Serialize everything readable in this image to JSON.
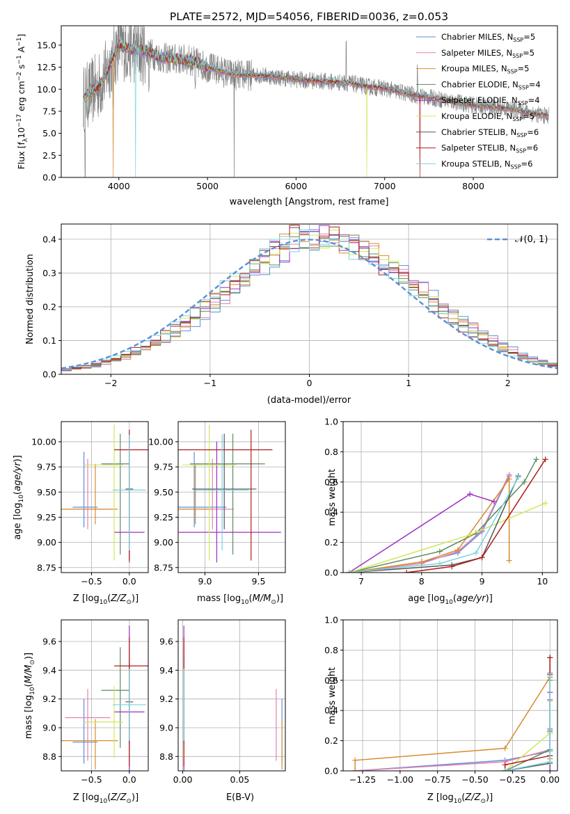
{
  "figure": {
    "title": "PLATE=2572, MJD=54056, FIBERID=0036, z=0.053"
  },
  "colors": {
    "chabrier_miles": "#5b8fd6",
    "salpeter_miles": "#e87fb0",
    "kroupa_miles": "#d88a2c",
    "chabrier_elodie": "#5d8a60",
    "salpeter_elodie": "#9b30c0",
    "kroupa_elodie": "#cfe85a",
    "chabrier_stelib": "#555555",
    "salpeter_stelib": "#b01c1c",
    "kroupa_stelib": "#78d3e0",
    "data": "#808080",
    "gaussian": "#5b8fd6"
  },
  "chart_data": [
    {
      "id": "spectrum",
      "type": "line",
      "title": "PLATE=2572, MJD=54056, FIBERID=0036, z=0.053",
      "xlabel": "wavelength [Angstrom, rest frame]",
      "ylabel_main": "Flux [f",
      "ylabel_sub": "λ",
      "ylabel_mid": "10",
      "ylabel_exp1": "−17",
      "ylabel_tail1": " erg cm",
      "ylabel_exp2": "−2",
      "ylabel_tail2": " s",
      "ylabel_exp3": "−1",
      "ylabel_tail3": " A",
      "ylabel_exp4": "−1",
      "ylabel_end": "]",
      "xlim": [
        3350,
        8950
      ],
      "ylim": [
        0,
        17.2
      ],
      "xticks": [
        "4000",
        "5000",
        "6000",
        "7000",
        "8000"
      ],
      "yticks": [
        "0.0",
        "2.5",
        "5.0",
        "7.5",
        "10.0",
        "12.5",
        "15.0"
      ],
      "continuum_x": [
        3600,
        3700,
        3800,
        3900,
        4000,
        4100,
        4300,
        4500,
        4800,
        5000,
        5300,
        5600,
        6000,
        6300,
        6600,
        6800,
        7000,
        7300,
        7600,
        8000,
        8400,
        8800
      ],
      "continuum_y": [
        8.9,
        9.8,
        10.6,
        12.8,
        15.0,
        14.6,
        14.3,
        13.5,
        13.3,
        12.5,
        11.6,
        11.6,
        11.1,
        10.9,
        10.7,
        10.3,
        10.1,
        9.4,
        8.9,
        8.2,
        7.8,
        7.0
      ],
      "legend": [
        {
          "name": "Chabrier MILES",
          "n": "5"
        },
        {
          "name": "Salpeter MILES",
          "n": "5"
        },
        {
          "name": "Kroupa MILES",
          "n": "5"
        },
        {
          "name": "Chabrier ELODIE",
          "n": "4"
        },
        {
          "name": "Salpeter ELODIE",
          "n": "4"
        },
        {
          "name": "Kroupa ELODIE",
          "n": "5"
        },
        {
          "name": "Chabrier STELIB",
          "n": "6"
        },
        {
          "name": "Salpeter STELIB",
          "n": "6"
        },
        {
          "name": "Kroupa STELIB",
          "n": "6"
        }
      ],
      "legend_prefix": "N",
      "legend_sub": "SSP",
      "legend_loc": "upper right"
    },
    {
      "id": "residuals",
      "type": "histogram",
      "xlabel": "(data-model)/error",
      "ylabel": "Normed distribution",
      "xlim": [
        -2.5,
        2.5
      ],
      "ylim": [
        0,
        0.445
      ],
      "xticks": [
        "−2",
        "−1",
        "0",
        "1",
        "2"
      ],
      "yticks": [
        "0.0",
        "0.1",
        "0.2",
        "0.3",
        "0.4"
      ],
      "legend_label": "𝒩(0, 1)",
      "legend_loc": "upper right",
      "bin_width": 0.1,
      "bin_start": -2.5
    },
    {
      "id": "age_vs_Z",
      "type": "errorbar",
      "xlabel": "Z [log",
      "xlabel_sub": "10",
      "xlabel_rest": "(Z/Z",
      "xlabel_sun": "⊙",
      "xlabel_end": ")]",
      "ylabel": "age  [log10(age/yr)]",
      "xlim": [
        -0.9,
        0.25
      ],
      "ylim": [
        8.7,
        10.2
      ],
      "xticks": [
        "−0.5",
        "0.0"
      ],
      "yticks": [
        "8.75",
        "9.00",
        "9.25",
        "9.50",
        "9.75",
        "10.00"
      ]
    },
    {
      "id": "age_vs_mass",
      "type": "errorbar",
      "xlabel": "mass [log10(M/M⊙)]",
      "xlim": [
        8.75,
        9.75
      ],
      "ylim": [
        8.7,
        10.2
      ],
      "xticks": [
        "9.0",
        "9.5"
      ],
      "yticks": [
        "8.75",
        "9.00",
        "9.25",
        "9.50",
        "9.75",
        "10.00"
      ]
    },
    {
      "id": "weight_vs_age",
      "type": "line",
      "xlabel": "age  [log10(age/yr)]",
      "ylabel": "mass weight",
      "xlim": [
        6.7,
        10.25
      ],
      "ylim": [
        0,
        1.0
      ],
      "xticks": [
        "7",
        "8",
        "9",
        "10"
      ],
      "yticks": [
        "0.0",
        "0.2",
        "0.4",
        "0.6",
        "0.8",
        "1.0"
      ]
    },
    {
      "id": "mass_vs_Z",
      "type": "errorbar",
      "xlabel": "Z [log10(Z/Z⊙)]",
      "ylabel": "mass [log10(M/M⊙)]",
      "xlim": [
        -0.9,
        0.25
      ],
      "ylim": [
        8.7,
        9.75
      ],
      "xticks": [
        "−0.5",
        "0.0"
      ],
      "yticks": [
        "8.8",
        "9.0",
        "9.2",
        "9.4",
        "9.6"
      ]
    },
    {
      "id": "mass_vs_ebv",
      "type": "errorbar",
      "xlabel": "E(B-V)",
      "xlim": [
        -0.004,
        0.09
      ],
      "ylim": [
        8.7,
        9.75
      ],
      "xticks": [
        "0.00",
        "0.05"
      ],
      "yticks": [
        "8.8",
        "9.0",
        "9.2",
        "9.4",
        "9.6"
      ]
    },
    {
      "id": "weight_vs_Z",
      "type": "line",
      "xlabel": "Z [log10(Z/Z⊙)]",
      "ylabel": "mass weight",
      "xlim": [
        -1.38,
        0.05
      ],
      "ylim": [
        0,
        1.0
      ],
      "xticks": [
        "−1.25",
        "−1.00",
        "−0.75",
        "−0.50",
        "−0.25",
        "0.00"
      ],
      "yticks": [
        "0.0",
        "0.2",
        "0.4",
        "0.6",
        "0.8",
        "1.0"
      ]
    }
  ],
  "models": [
    {
      "key": "chabrier_miles",
      "Z": -0.6,
      "Zerr": [
        0.15,
        0.18
      ],
      "age": 9.35,
      "ageErr": [
        0.2,
        0.55
      ],
      "mass": 8.9,
      "massErr": [
        0.15,
        0.3
      ],
      "ebv": 0.087,
      "ages": [
        6.8,
        8.0,
        8.6,
        9.0,
        9.45
      ],
      "w": [
        0.0,
        0.07,
        0.13,
        0.27,
        0.64
      ],
      "Zs": [
        -1.3,
        -0.3,
        0.0,
        0.0,
        0.0
      ]
    },
    {
      "key": "salpeter_miles",
      "Z": -0.55,
      "Zerr": [
        0.3,
        0.3
      ],
      "age": 9.33,
      "ageErr": [
        0.2,
        0.5
      ],
      "mass": 9.07,
      "massErr": [
        0.3,
        0.2
      ],
      "ebv": 0.082,
      "ages": [
        6.8,
        8.0,
        8.6,
        9.0,
        9.45
      ],
      "w": [
        0.0,
        0.06,
        0.14,
        0.28,
        0.65
      ],
      "Zs": [
        -1.3,
        -0.3,
        0.0,
        0.0,
        0.0
      ]
    },
    {
      "key": "kroupa_miles",
      "Z": -0.45,
      "Zerr": [
        0.45,
        0.3
      ],
      "age": 9.33,
      "ageErr": [
        0.15,
        0.45
      ],
      "mass": 8.91,
      "massErr": [
        0.2,
        0.15
      ],
      "ebv": 0.087,
      "ages": [
        6.8,
        8.0,
        8.6,
        9.45,
        9.45
      ],
      "w": [
        0.0,
        0.07,
        0.15,
        0.62,
        0.08
      ],
      "Zs": [
        -1.3,
        -1.3,
        -0.3,
        0.0,
        0.0
      ]
    },
    {
      "key": "chabrier_elodie",
      "Z": -0.12,
      "Zerr": [
        0.25,
        0.12
      ],
      "age": 9.78,
      "ageErr": [
        0.9,
        0.3
      ],
      "mass": 9.26,
      "massErr": [
        0.4,
        0.3
      ],
      "ebv": 0.001,
      "ages": [
        6.8,
        8.3,
        8.9,
        9.7,
        9.9
      ],
      "w": [
        0.0,
        0.14,
        0.26,
        0.6,
        0.75
      ],
      "Zs": [
        -0.3,
        0.0,
        0.0,
        0.0,
        0.0
      ]
    },
    {
      "key": "salpeter_elodie",
      "Z": 0.0,
      "Zerr": [
        0.2,
        0.2
      ],
      "age": 9.1,
      "ageErr": [
        0.3,
        0.9
      ],
      "mass": 9.11,
      "massErr": [
        0.6,
        0.6
      ],
      "ebv": 0.001,
      "ages": [
        6.8,
        8.8,
        9.2
      ],
      "w": [
        0.0,
        0.52,
        0.47
      ],
      "Zs": [
        0.0,
        0.0,
        0.0
      ]
    },
    {
      "key": "kroupa_elodie",
      "Z": -0.2,
      "Zerr": [
        0.4,
        0.12
      ],
      "age": 9.77,
      "ageErr": [
        0.95,
        0.4
      ],
      "mass": 9.04,
      "massErr": [
        0.25,
        0.25
      ],
      "ebv": 0.001,
      "ages": [
        6.8,
        8.8,
        10.05
      ],
      "w": [
        0.0,
        0.25,
        0.46
      ],
      "Zs": [
        -0.3,
        0.0,
        0.0
      ]
    },
    {
      "key": "chabrier_stelib",
      "Z": 0.0,
      "Zerr": [
        0.05,
        0.05
      ],
      "age": 9.53,
      "ageErr": [
        0.4,
        0.55
      ],
      "mass": 9.18,
      "massErr": [
        0.3,
        0.3
      ],
      "ebv": 0.001,
      "ages": [
        6.8,
        8.5,
        9.0,
        9.6
      ],
      "w": [
        0.0,
        0.05,
        0.1,
        0.64
      ],
      "Zs": [
        -0.3,
        0.0,
        0.0,
        0.0
      ]
    },
    {
      "key": "salpeter_stelib",
      "Z": 0.0,
      "Zerr": [
        0.2,
        0.25
      ],
      "age": 9.92,
      "ageErr": [
        1.1,
        0.2
      ],
      "mass": 9.43,
      "massErr": [
        0.7,
        0.2
      ],
      "ebv": 0.001,
      "ages": [
        7.75,
        8.5,
        9.0,
        10.05
      ],
      "w": [
        0.0,
        0.04,
        0.1,
        0.75
      ],
      "Zs": [
        -0.3,
        -0.3,
        0.0,
        0.0
      ]
    },
    {
      "key": "kroupa_stelib",
      "Z": 0.0,
      "Zerr": [
        0.22,
        0.22
      ],
      "age": 9.52,
      "ageErr": [
        0.6,
        0.55
      ],
      "mass": 9.16,
      "massErr": [
        0.25,
        0.25
      ],
      "ebv": 0.001,
      "ages": [
        6.8,
        8.3,
        8.9,
        9.6
      ],
      "w": [
        0.0,
        0.06,
        0.13,
        0.63
      ],
      "Zs": [
        -0.3,
        0.0,
        0.0,
        0.0
      ]
    }
  ]
}
